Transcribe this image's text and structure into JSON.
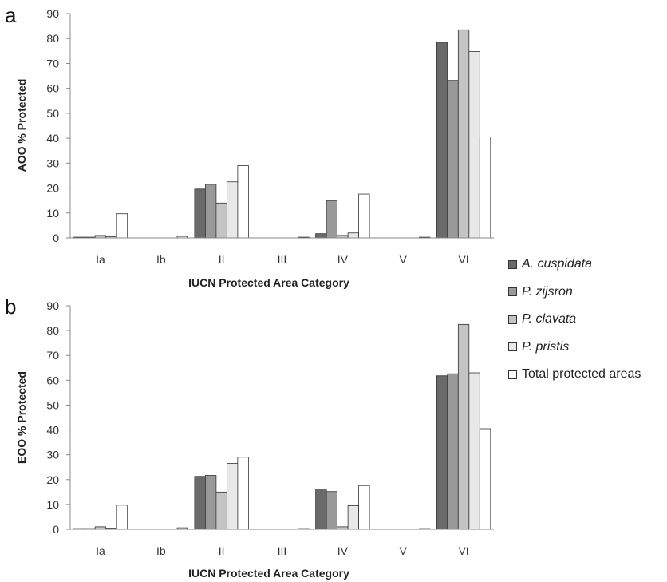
{
  "colors": {
    "A_cuspidata": "#6a6a6a",
    "P_zijsron": "#999999",
    "P_clavata": "#c4c4c4",
    "P_pristis": "#e8e8e8",
    "Total": "#ffffff",
    "axis": "#888888",
    "bar_stroke": "#333333"
  },
  "legend": [
    {
      "label": "A. cuspidata",
      "italic": true,
      "color_key": "A_cuspidata"
    },
    {
      "label": "P. zijsron",
      "italic": true,
      "color_key": "P_zijsron"
    },
    {
      "label": "P. clavata",
      "italic": true,
      "color_key": "P_clavata"
    },
    {
      "label": "P. pristis",
      "italic": true,
      "color_key": "P_pristis"
    },
    {
      "label": "Total protected areas",
      "italic": false,
      "color_key": "Total"
    }
  ],
  "chart_data": [
    {
      "panel": "a",
      "type": "bar",
      "xlabel": "IUCN Protected Area Category",
      "ylabel": "AOO % Protected",
      "ylim": [
        0,
        90
      ],
      "yticks": [
        0,
        10,
        20,
        30,
        40,
        50,
        60,
        70,
        80,
        90
      ],
      "grid": false,
      "categories": [
        "Ia",
        "Ib",
        "II",
        "III",
        "IV",
        "V",
        "VI"
      ],
      "series": [
        {
          "name": "A. cuspidata",
          "color_key": "A_cuspidata",
          "values": [
            0.3,
            0,
            19.6,
            0,
            1.7,
            0,
            78.5
          ]
        },
        {
          "name": "P. zijsron",
          "color_key": "P_zijsron",
          "values": [
            0.3,
            0,
            21.5,
            0,
            15.0,
            0,
            63.2
          ]
        },
        {
          "name": "P. clavata",
          "color_key": "P_clavata",
          "values": [
            1.0,
            0,
            14.0,
            0,
            1.0,
            0,
            83.5
          ]
        },
        {
          "name": "P. pristis",
          "color_key": "P_pristis",
          "values": [
            0.5,
            0,
            22.5,
            0,
            2.0,
            0,
            74.8
          ]
        },
        {
          "name": "Total protected areas",
          "color_key": "Total",
          "values": [
            9.7,
            0.6,
            29.0,
            0.3,
            17.6,
            0.3,
            40.5
          ]
        }
      ]
    },
    {
      "panel": "b",
      "type": "bar",
      "xlabel": "IUCN Protected Area Category",
      "ylabel": "EOO % Protected",
      "ylim": [
        0,
        90
      ],
      "yticks": [
        0,
        10,
        20,
        30,
        40,
        50,
        60,
        70,
        80,
        90
      ],
      "grid": false,
      "categories": [
        "Ia",
        "Ib",
        "II",
        "III",
        "IV",
        "V",
        "VI"
      ],
      "series": [
        {
          "name": "A. cuspidata",
          "color_key": "A_cuspidata",
          "values": [
            0.3,
            0,
            21.3,
            0,
            16.2,
            0,
            61.8
          ]
        },
        {
          "name": "P. zijsron",
          "color_key": "P_zijsron",
          "values": [
            0.3,
            0,
            21.7,
            0,
            15.2,
            0,
            62.6
          ]
        },
        {
          "name": "P. clavata",
          "color_key": "P_clavata",
          "values": [
            1.0,
            0,
            15.0,
            0,
            1.0,
            0,
            82.5
          ]
        },
        {
          "name": "P. pristis",
          "color_key": "P_pristis",
          "values": [
            0.5,
            0,
            26.5,
            0,
            9.5,
            0,
            63.0
          ]
        },
        {
          "name": "Total protected areas",
          "color_key": "Total",
          "values": [
            9.7,
            0.6,
            29.0,
            0.3,
            17.6,
            0.3,
            40.5
          ]
        }
      ]
    }
  ]
}
